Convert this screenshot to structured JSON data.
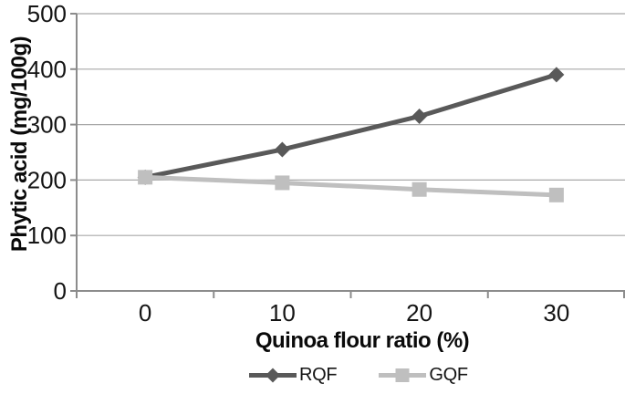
{
  "chart_data": {
    "type": "line",
    "categories": [
      "0",
      "10",
      "20",
      "30"
    ],
    "x_values": [
      0,
      10,
      20,
      30
    ],
    "series": [
      {
        "name": "RQF",
        "marker": "diamond",
        "color": "#595959",
        "values": [
          205,
          255,
          315,
          390
        ]
      },
      {
        "name": "GQF",
        "marker": "square",
        "color": "#bfbfbf",
        "values": [
          205,
          195,
          183,
          173
        ]
      }
    ],
    "xlabel": "Quinoa flour ratio (%)",
    "ylabel": "Phytic acid (mg/100g)",
    "ylim": [
      0,
      500
    ],
    "yticks": [
      0,
      100,
      200,
      300,
      400,
      500
    ],
    "grid": true,
    "legend_position": "bottom-center",
    "colors": {
      "gridline": "#a8a8a8",
      "axis": "#8c8c8c",
      "tick_text": "#141414",
      "title_text": "#0a0a0a"
    }
  }
}
